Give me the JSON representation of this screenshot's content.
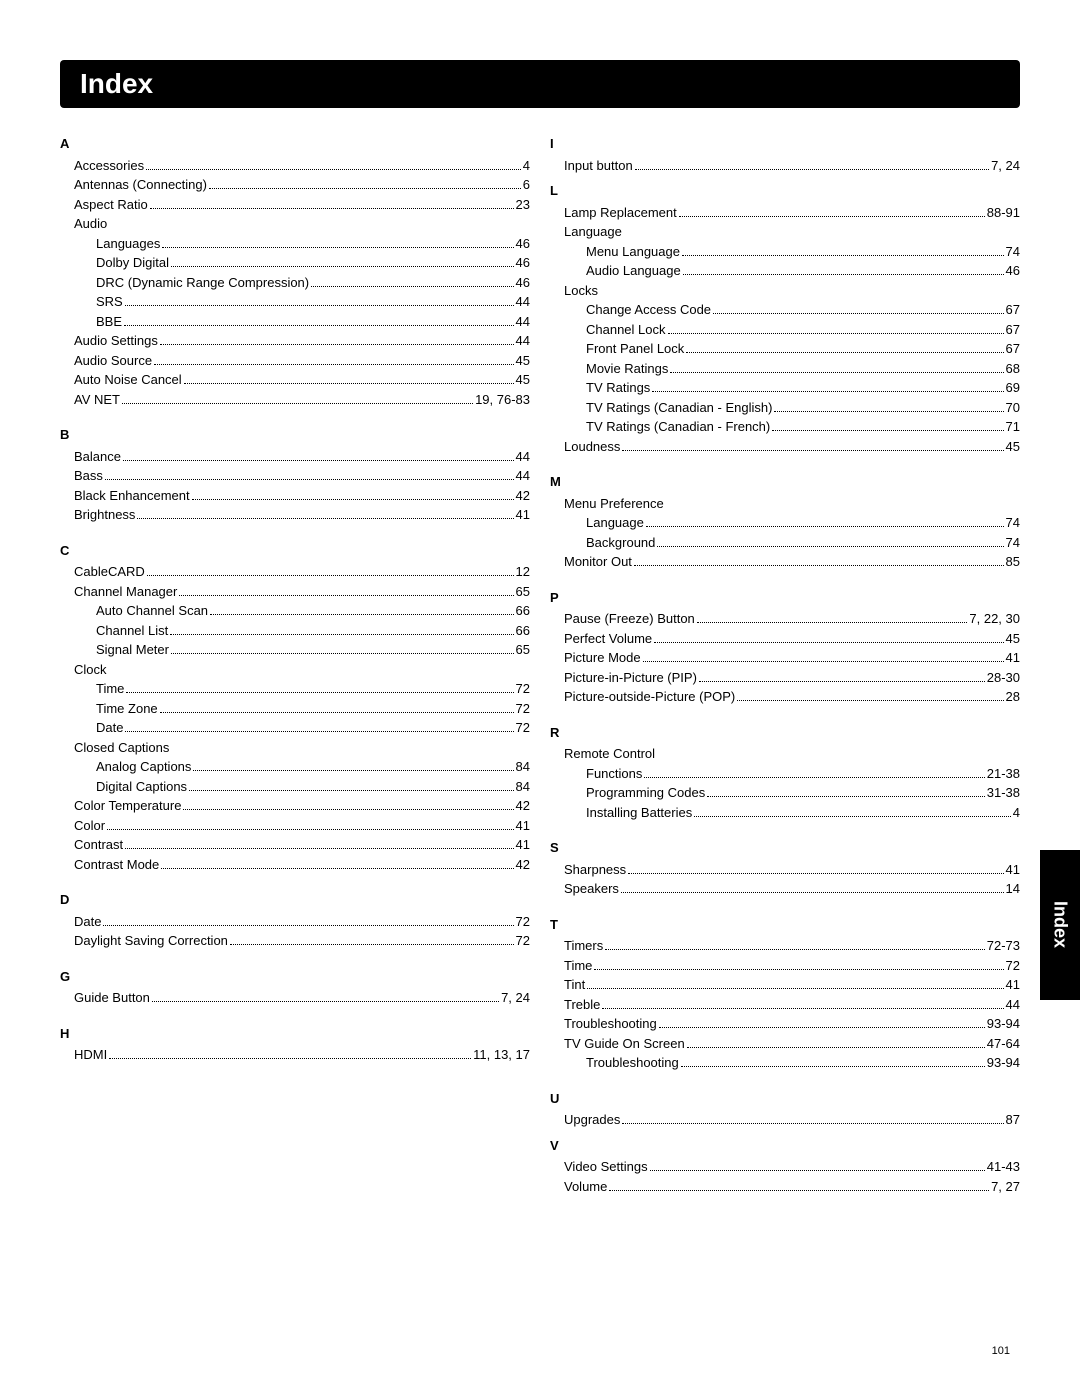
{
  "title": "Index",
  "sideTab": "Index",
  "pageNumber": "101",
  "left": [
    {
      "type": "letter",
      "text": "A"
    },
    {
      "type": "entry",
      "level": 1,
      "label": "Accessories",
      "page": "4"
    },
    {
      "type": "entry",
      "level": 1,
      "label": "Antennas (Connecting)",
      "page": "6"
    },
    {
      "type": "entry",
      "level": 1,
      "label": "Aspect Ratio",
      "page": "23"
    },
    {
      "type": "entry",
      "level": 1,
      "label": "Audio",
      "noline": true
    },
    {
      "type": "entry",
      "level": 2,
      "label": "Languages",
      "page": "46"
    },
    {
      "type": "entry",
      "level": 2,
      "label": "Dolby Digital",
      "page": "46"
    },
    {
      "type": "entry",
      "level": 2,
      "label": "DRC (Dynamic Range Compression)",
      "page": "46"
    },
    {
      "type": "entry",
      "level": 2,
      "label": "SRS",
      "page": "44"
    },
    {
      "type": "entry",
      "level": 2,
      "label": "BBE",
      "page": "44"
    },
    {
      "type": "entry",
      "level": 1,
      "label": "Audio Settings",
      "page": "44"
    },
    {
      "type": "entry",
      "level": 1,
      "label": "Audio Source",
      "page": "45"
    },
    {
      "type": "entry",
      "level": 1,
      "label": "Auto Noise Cancel",
      "page": "45"
    },
    {
      "type": "entry",
      "level": 1,
      "label": "AV NET",
      "page": "19, 76-83"
    },
    {
      "type": "spacer"
    },
    {
      "type": "letter",
      "text": "B"
    },
    {
      "type": "entry",
      "level": 1,
      "label": "Balance",
      "page": "44"
    },
    {
      "type": "entry",
      "level": 1,
      "label": "Bass",
      "page": "44"
    },
    {
      "type": "entry",
      "level": 1,
      "label": "Black Enhancement",
      "page": "42"
    },
    {
      "type": "entry",
      "level": 1,
      "label": "Brightness",
      "page": "41"
    },
    {
      "type": "spacer"
    },
    {
      "type": "letter",
      "text": "C"
    },
    {
      "type": "entry",
      "level": 1,
      "label": "CableCARD",
      "page": "12"
    },
    {
      "type": "entry",
      "level": 1,
      "label": "Channel Manager",
      "page": "65"
    },
    {
      "type": "entry",
      "level": 2,
      "label": "Auto Channel Scan",
      "page": "66"
    },
    {
      "type": "entry",
      "level": 2,
      "label": "Channel List",
      "page": "66"
    },
    {
      "type": "entry",
      "level": 2,
      "label": "Signal Meter",
      "page": "65"
    },
    {
      "type": "entry",
      "level": 1,
      "label": "Clock",
      "noline": true
    },
    {
      "type": "entry",
      "level": 2,
      "label": "Time",
      "page": "72"
    },
    {
      "type": "entry",
      "level": 2,
      "label": "Time Zone",
      "page": "72"
    },
    {
      "type": "entry",
      "level": 2,
      "label": "Date",
      "page": "72"
    },
    {
      "type": "entry",
      "level": 1,
      "label": "Closed Captions",
      "noline": true
    },
    {
      "type": "entry",
      "level": 2,
      "label": "Analog Captions",
      "page": "84"
    },
    {
      "type": "entry",
      "level": 2,
      "label": "Digital Captions",
      "page": "84"
    },
    {
      "type": "entry",
      "level": 1,
      "label": "Color Temperature",
      "page": "42"
    },
    {
      "type": "entry",
      "level": 1,
      "label": "Color",
      "page": "41"
    },
    {
      "type": "entry",
      "level": 1,
      "label": "Contrast",
      "page": "41"
    },
    {
      "type": "entry",
      "level": 1,
      "label": "Contrast Mode",
      "page": "42"
    },
    {
      "type": "spacer"
    },
    {
      "type": "letter",
      "text": "D"
    },
    {
      "type": "entry",
      "level": 1,
      "label": "Date",
      "page": "72"
    },
    {
      "type": "entry",
      "level": 1,
      "label": "Daylight Saving Correction",
      "page": "72"
    },
    {
      "type": "spacer"
    },
    {
      "type": "letter",
      "text": "G"
    },
    {
      "type": "entry",
      "level": 1,
      "label": "Guide Button",
      "page": "7, 24"
    },
    {
      "type": "spacer"
    },
    {
      "type": "letter",
      "text": "H"
    },
    {
      "type": "entry",
      "level": 1,
      "label": "HDMI",
      "page": "11, 13, 17"
    }
  ],
  "right": [
    {
      "type": "letter",
      "text": "I"
    },
    {
      "type": "entry",
      "level": 1,
      "label": "Input button",
      "page": "7, 24"
    },
    {
      "type": "letter",
      "text": "L"
    },
    {
      "type": "entry",
      "level": 1,
      "label": "Lamp Replacement",
      "page": "88-91"
    },
    {
      "type": "entry",
      "level": 1,
      "label": "Language",
      "noline": true
    },
    {
      "type": "entry",
      "level": 2,
      "label": "Menu Language",
      "page": "74"
    },
    {
      "type": "entry",
      "level": 2,
      "label": "Audio Language",
      "page": "46"
    },
    {
      "type": "entry",
      "level": 1,
      "label": "Locks",
      "noline": true
    },
    {
      "type": "entry",
      "level": 2,
      "label": "Change Access Code",
      "page": "67"
    },
    {
      "type": "entry",
      "level": 2,
      "label": "Channel Lock",
      "page": "67"
    },
    {
      "type": "entry",
      "level": 2,
      "label": "Front Panel Lock",
      "page": "67"
    },
    {
      "type": "entry",
      "level": 2,
      "label": "Movie Ratings",
      "page": "68"
    },
    {
      "type": "entry",
      "level": 2,
      "label": "TV Ratings",
      "page": "69"
    },
    {
      "type": "entry",
      "level": 2,
      "label": "TV Ratings (Canadian - English)",
      "page": "70"
    },
    {
      "type": "entry",
      "level": 2,
      "label": "TV Ratings (Canadian - French)",
      "page": "71"
    },
    {
      "type": "entry",
      "level": 1,
      "label": "Loudness",
      "page": "45"
    },
    {
      "type": "spacer"
    },
    {
      "type": "letter",
      "text": "M"
    },
    {
      "type": "entry",
      "level": 1,
      "label": "Menu Preference",
      "noline": true
    },
    {
      "type": "entry",
      "level": 2,
      "label": "Language",
      "page": "74"
    },
    {
      "type": "entry",
      "level": 2,
      "label": "Background",
      "page": "74"
    },
    {
      "type": "entry",
      "level": 1,
      "label": "Monitor Out",
      "page": "85"
    },
    {
      "type": "spacer"
    },
    {
      "type": "letter",
      "text": "P"
    },
    {
      "type": "entry",
      "level": 1,
      "label": "Pause (Freeze) Button",
      "page": "7, 22, 30"
    },
    {
      "type": "entry",
      "level": 1,
      "label": "Perfect Volume",
      "page": "45"
    },
    {
      "type": "entry",
      "level": 1,
      "label": "Picture Mode",
      "page": "41"
    },
    {
      "type": "entry",
      "level": 1,
      "label": "Picture-in-Picture (PIP)",
      "page": "28-30"
    },
    {
      "type": "entry",
      "level": 1,
      "label": "Picture-outside-Picture (POP)",
      "page": "28"
    },
    {
      "type": "spacer"
    },
    {
      "type": "letter",
      "text": "R"
    },
    {
      "type": "entry",
      "level": 1,
      "label": "Remote Control",
      "noline": true
    },
    {
      "type": "entry",
      "level": 2,
      "label": "Functions",
      "page": "21-38"
    },
    {
      "type": "entry",
      "level": 2,
      "label": "Programming Codes",
      "page": "31-38"
    },
    {
      "type": "entry",
      "level": 2,
      "label": "Installing Batteries",
      "page": "4"
    },
    {
      "type": "spacer"
    },
    {
      "type": "letter",
      "text": "S"
    },
    {
      "type": "entry",
      "level": 1,
      "label": "Sharpness",
      "page": "41"
    },
    {
      "type": "entry",
      "level": 1,
      "label": "Speakers",
      "page": "14"
    },
    {
      "type": "spacer"
    },
    {
      "type": "letter",
      "text": "T"
    },
    {
      "type": "entry",
      "level": 1,
      "label": "Timers",
      "page": "72-73"
    },
    {
      "type": "entry",
      "level": 1,
      "label": "Time",
      "page": "72"
    },
    {
      "type": "entry",
      "level": 1,
      "label": "Tint",
      "page": "41"
    },
    {
      "type": "entry",
      "level": 1,
      "label": "Treble",
      "page": "44"
    },
    {
      "type": "entry",
      "level": 1,
      "label": "Troubleshooting",
      "page": "93-94"
    },
    {
      "type": "entry",
      "level": 1,
      "label": "TV Guide On Screen",
      "page": "47-64"
    },
    {
      "type": "entry",
      "level": 2,
      "label": "Troubleshooting",
      "page": "93-94"
    },
    {
      "type": "spacer"
    },
    {
      "type": "letter",
      "text": "U"
    },
    {
      "type": "entry",
      "level": 1,
      "label": "Upgrades",
      "page": "87"
    },
    {
      "type": "letter",
      "text": "V"
    },
    {
      "type": "entry",
      "level": 1,
      "label": "Video Settings",
      "page": "41-43"
    },
    {
      "type": "entry",
      "level": 1,
      "label": "Volume",
      "page": "7, 27"
    }
  ]
}
